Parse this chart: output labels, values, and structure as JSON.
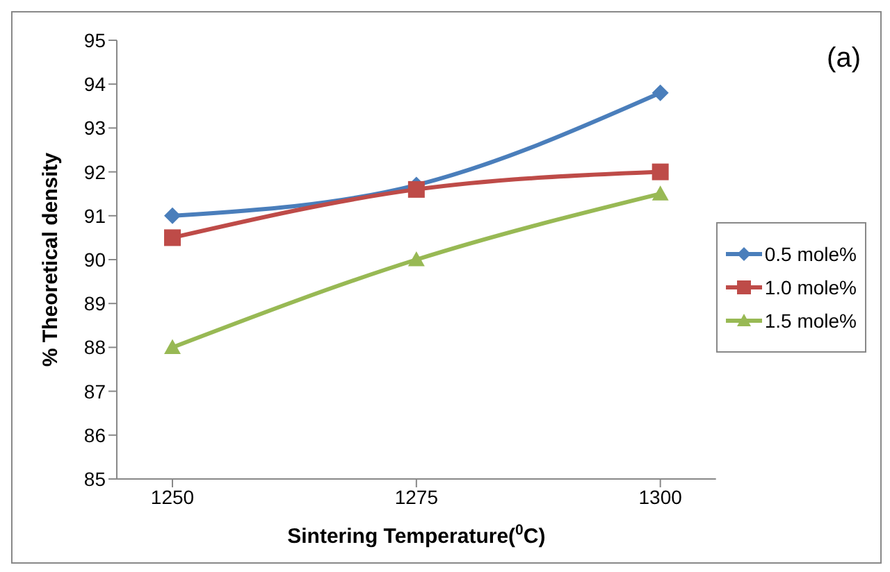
{
  "chart_data": {
    "type": "line",
    "xlabel": "Sintering Temperature($^{0}$C)",
    "ylabel": "% Theoretical density",
    "annotations": [
      "(a)"
    ],
    "categories": [
      "1250",
      "1275",
      "1300"
    ],
    "series": [
      {
        "name": "0.5 mole%",
        "color": "#4a7ebb",
        "marker": "diamond",
        "values": [
          91,
          91.7,
          93.8
        ]
      },
      {
        "name": "1.0 mole%",
        "color": "#be4b48",
        "marker": "square",
        "values": [
          90.5,
          91.6,
          92
        ]
      },
      {
        "name": "1.5 mole%",
        "color": "#98b954",
        "marker": "triangle",
        "values": [
          88,
          90,
          91.5
        ]
      }
    ],
    "ylim": [
      85,
      95
    ],
    "yticks": [
      85,
      86,
      87,
      88,
      89,
      90,
      91,
      92,
      93,
      94,
      95
    ],
    "grid": false,
    "legend": "right",
    "line_style": "solid"
  }
}
